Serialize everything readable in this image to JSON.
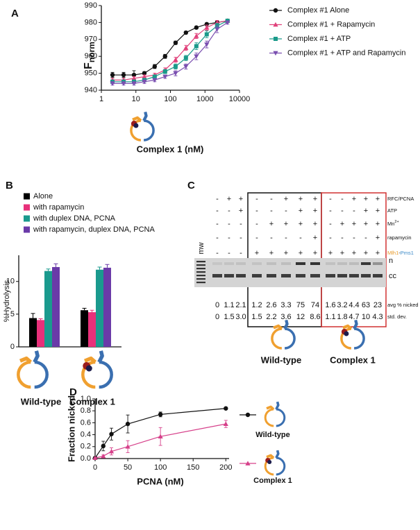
{
  "chart_data": [
    {
      "type": "line",
      "label": "A",
      "x_scale": "log",
      "ylabel": "F",
      "ylabel_sub": "norm",
      "xlabel": "Complex 1 (nM)",
      "x": [
        2.1,
        4.4,
        8.8,
        17.6,
        35,
        70,
        141,
        281,
        563,
        1125,
        2250,
        4500
      ],
      "xlim": [
        1,
        10000
      ],
      "xticks": [
        1,
        10,
        100,
        1000,
        10000
      ],
      "ylim": [
        940,
        990
      ],
      "yticks": [
        940,
        950,
        960,
        970,
        980,
        990
      ],
      "legend": "right",
      "series": [
        {
          "name": "Complex #1 Alone",
          "color": "#111111",
          "marker": "circle",
          "values": [
            949,
            949,
            949,
            950,
            954,
            960,
            968,
            974,
            977,
            979,
            980,
            981
          ],
          "errors": [
            1.5,
            1.5,
            2.5,
            1,
            1.2,
            1.2,
            1,
            0.8,
            0.8,
            0.8,
            0.8,
            0.8
          ]
        },
        {
          "name": "Complex #1 + Rapamycin",
          "color": "#e0407a",
          "marker": "triangle",
          "values": [
            946,
            946,
            947,
            948,
            949,
            952,
            958,
            965,
            972,
            977,
            980,
            981
          ],
          "errors": [
            1,
            1,
            1,
            1,
            1,
            1.2,
            1.5,
            1.5,
            1.5,
            1.5,
            1.2,
            1
          ]
        },
        {
          "name": "Complex #1 + ATP",
          "color": "#1a9a8a",
          "marker": "square",
          "values": [
            945,
            945,
            945,
            946,
            948,
            951,
            954,
            959,
            966,
            973,
            978,
            981
          ],
          "errors": [
            1,
            1,
            1,
            1,
            1,
            1.2,
            1.5,
            1.5,
            2,
            2,
            1.5,
            1
          ]
        },
        {
          "name": "Complex #1 + ATP and Rapamycin",
          "color": "#7a4fb0",
          "marker": "down-triangle",
          "values": [
            944,
            944,
            944,
            945,
            946,
            948,
            950,
            954,
            960,
            967,
            976,
            980
          ],
          "errors": [
            1,
            1,
            1,
            1,
            1,
            1,
            1.5,
            1.5,
            2,
            2,
            2,
            1
          ]
        }
      ]
    },
    {
      "type": "bar",
      "label": "B",
      "ylabel": "%Hydrolysis",
      "categories": [
        "Wild-type",
        "Complex 1"
      ],
      "ylim": [
        0,
        14
      ],
      "yticks": [
        0,
        5,
        10
      ],
      "legend": "top",
      "series": [
        {
          "name": "Alone",
          "color": "#000000",
          "values": [
            4.4,
            5.6
          ],
          "errors": [
            0.7,
            0.3
          ]
        },
        {
          "name": "with rapamycin",
          "color": "#e8307a",
          "values": [
            4.1,
            5.3
          ],
          "errors": [
            0.2,
            0.3
          ]
        },
        {
          "name": "with duplex DNA, PCNA",
          "color": "#1a9a8e",
          "values": [
            11.6,
            11.8
          ],
          "errors": [
            0.3,
            0.4
          ]
        },
        {
          "name": "with rapamycin, duplex DNA, PCNA",
          "color": "#6a3aa8",
          "values": [
            12.2,
            12.1
          ],
          "errors": [
            0.5,
            0.5
          ]
        }
      ]
    },
    {
      "type": "line",
      "label": "D",
      "x_scale": "linear",
      "ylabel": "Fraction nicked",
      "xlabel": "PCNA (nM)",
      "x": [
        0,
        12.5,
        25,
        50,
        100,
        200
      ],
      "xlim": [
        0,
        205
      ],
      "xticks": [
        0,
        50,
        100,
        150,
        200
      ],
      "ylim": [
        0,
        1
      ],
      "yticks": [
        {
          "value": 0,
          "label": "0.0"
        },
        0.2,
        0.4,
        0.6,
        0.8,
        {
          "value": 1,
          "label": "1.0"
        }
      ],
      "legend": "right",
      "series": [
        {
          "name": "Wild-type",
          "color": "#111111",
          "marker": "circle",
          "values": [
            0.01,
            0.21,
            0.41,
            0.58,
            0.74,
            0.84
          ],
          "errors": [
            0,
            0.08,
            0.1,
            0.15,
            0.04,
            0.02
          ]
        },
        {
          "name": "Complex 1",
          "color": "#d6408a",
          "marker": "triangle",
          "values": [
            0.01,
            0.04,
            0.12,
            0.2,
            0.37,
            0.58
          ],
          "errors": [
            0,
            0.02,
            0.06,
            0.1,
            0.15,
            0.06
          ]
        }
      ]
    }
  ],
  "gel": {
    "label": "C",
    "mw": "mw",
    "groups": [
      "Wild-type",
      "Complex 1"
    ],
    "rows": [
      {
        "label": "RFC/PCNA",
        "signs": [
          "-",
          "+",
          "+",
          "-",
          "-",
          "+",
          "+",
          "+",
          "-",
          "-",
          "+",
          "+",
          "+"
        ]
      },
      {
        "label": "ATP",
        "signs": [
          "-",
          "-",
          "+",
          "-",
          "-",
          "-",
          "+",
          "+",
          "-",
          "-",
          "-",
          "+",
          "+"
        ]
      },
      {
        "label": "Mn",
        "sup": "2+",
        "signs": [
          "-",
          "-",
          "-",
          "-",
          "+",
          "+",
          "+",
          "+",
          "-",
          "+",
          "+",
          "+",
          "+"
        ]
      },
      {
        "label": "rapamycin",
        "signs": [
          "-",
          "-",
          "-",
          "-",
          "-",
          "-",
          "-",
          "+",
          "-",
          "-",
          "-",
          "-",
          "+"
        ]
      }
    ],
    "protein": {
      "name1": "Mlh1",
      "sep": "-",
      "name2": "Pms1",
      "signs": [
        "-",
        "-",
        "-",
        "+",
        "+",
        "+",
        "+",
        "+",
        "+",
        "+",
        "+",
        "+",
        "+"
      ]
    },
    "bands": [
      "n",
      "cc"
    ],
    "avg": {
      "label": "avg % nicked",
      "values": [
        "0",
        "1.1",
        "2.1",
        "1.2",
        "2.6",
        "3.3",
        "75",
        "74",
        "1.6",
        "3.2",
        "4.4",
        "63",
        "23"
      ]
    },
    "std": {
      "label": "std. dev.",
      "values": [
        "0",
        "1.5",
        "3.0",
        "1.5",
        "2.2",
        "3.6",
        "12",
        "8.6",
        "1.1",
        "1.8",
        "4.7",
        "10",
        "4.3"
      ]
    }
  }
}
